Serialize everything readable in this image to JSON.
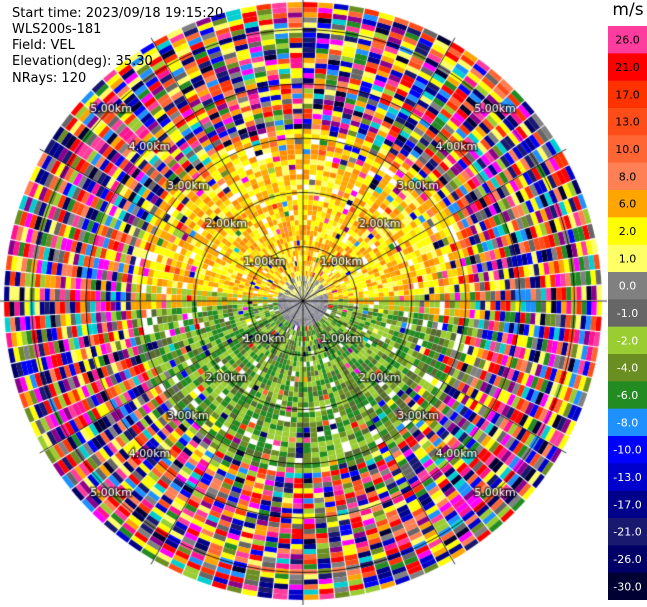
{
  "header": {
    "start_time": "Start time: 2023/09/18 19:15:20",
    "instrument": "WLS200s-181",
    "field": "Field: VEL",
    "elevation": "Elevation(deg): 35.30",
    "nrays": "NRays: 120"
  },
  "colorbar": {
    "unit": "m/s",
    "ticks": [
      "26.0",
      "21.0",
      "17.0",
      "13.0",
      "10.0",
      "8.0",
      "6.0",
      "2.0",
      "1.0",
      "0.0",
      "-1.0",
      "-2.0",
      "-4.0",
      "-6.0",
      "-8.0",
      "-10.0",
      "-13.0",
      "-17.0",
      "-21.0",
      "-26.0",
      "-30.0"
    ],
    "colors": [
      "#ff3d9e",
      "#ff0000",
      "#ff3300",
      "#ff4d1a",
      "#ff6633",
      "#ff8055",
      "#ffa500",
      "#ffff00",
      "#ffff66",
      "#808080",
      "#666666",
      "#9acd32",
      "#6b8e23",
      "#228b22",
      "#1e90ff",
      "#0000ff",
      "#0000cd",
      "#00008b",
      "#191970",
      "#000066",
      "#000033"
    ]
  },
  "chart_data": {
    "type": "heatmap",
    "subtype": "ppi-polar",
    "field": "VEL",
    "units": "m/s",
    "rays": 120,
    "range_rings": [
      {
        "label": "1.00km",
        "range_km": 1.0
      },
      {
        "label": "2.00km",
        "range_km": 2.0
      },
      {
        "label": "3.00km",
        "range_km": 3.0
      },
      {
        "label": "4.00km",
        "range_km": 4.0
      },
      {
        "label": "5.00km",
        "range_km": 5.0
      }
    ],
    "max_range_km": 5.6,
    "spokes_deg": [
      0,
      30,
      60,
      90,
      120,
      150,
      180,
      210,
      240,
      270,
      300,
      330
    ],
    "pattern": {
      "north_sector": "positive velocities 2 to 8 m/s (yellow/orange)",
      "south_sector": "negative velocities -2 to -8 m/s (green/olive)",
      "near_center": "values near 0 m/s (gray)",
      "outer_ring": "noisy, full colour range"
    }
  }
}
